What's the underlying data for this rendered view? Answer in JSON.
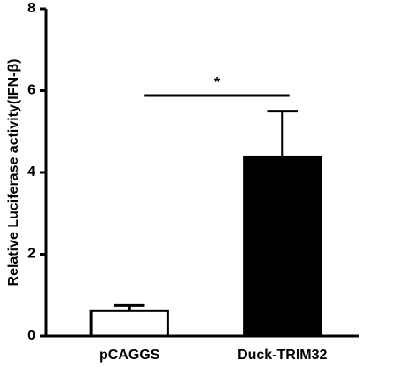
{
  "chart_data": {
    "type": "bar",
    "ylabel": "Relative Luciferase activity(IFN-β)",
    "categories": [
      "pCAGGS",
      "Duck-TRIM32"
    ],
    "values": [
      0.62,
      4.38
    ],
    "errors": [
      0.13,
      1.12
    ],
    "colors": [
      "#ffffff",
      "#000000"
    ],
    "ylim": [
      0,
      8
    ],
    "yticks": [
      0,
      2,
      4,
      6,
      8
    ],
    "annotation": "*"
  }
}
